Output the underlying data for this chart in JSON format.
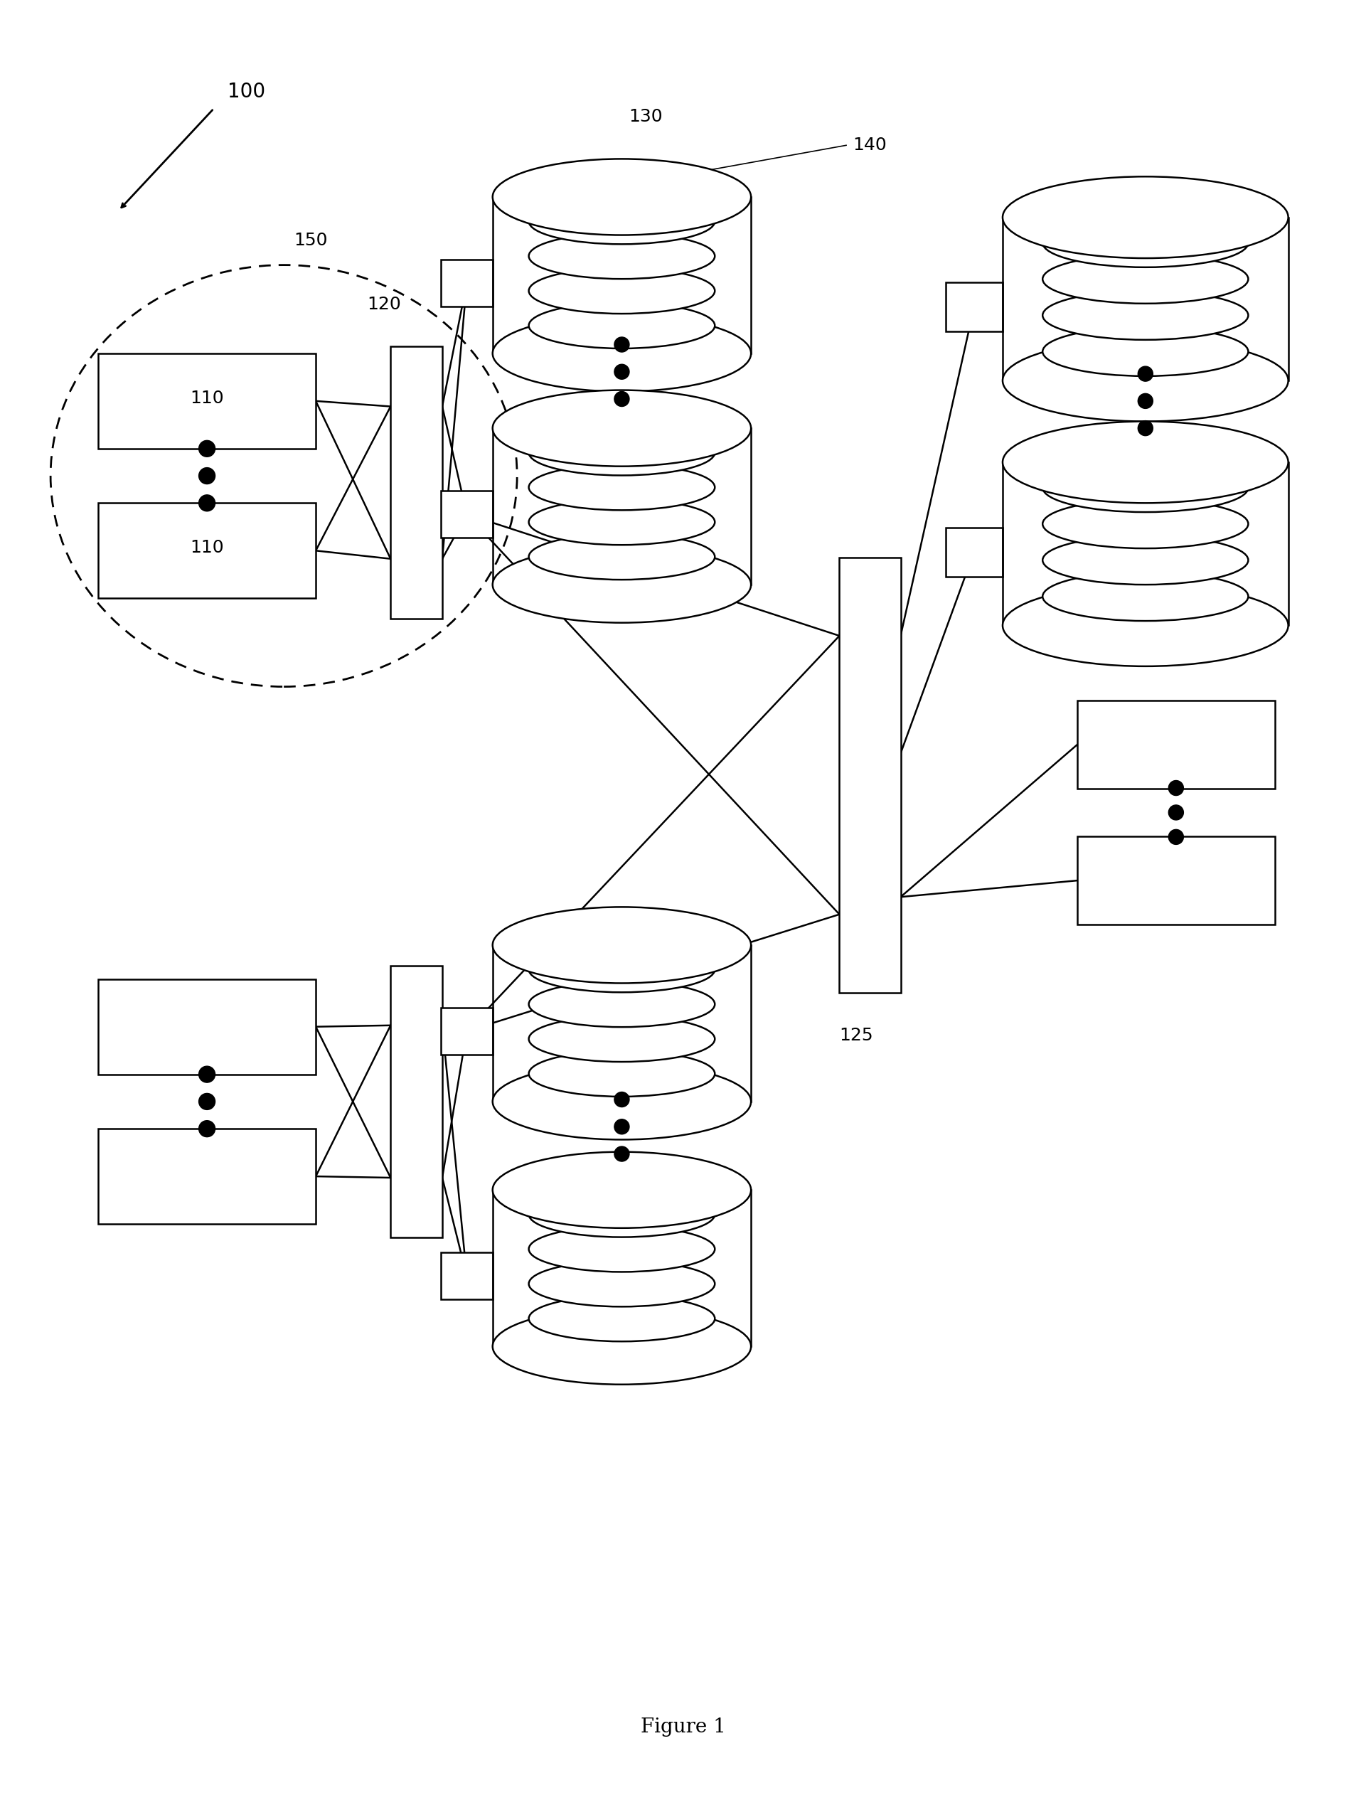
{
  "fig_width": 19.21,
  "fig_height": 25.24,
  "bg_color": "#ffffff",
  "line_color": "#000000",
  "label_100": "100",
  "label_150": "150",
  "label_120": "120",
  "label_130": "130",
  "label_140": "140",
  "label_125": "125",
  "label_110": "110",
  "figure_label": "Figure 1",
  "font_size": 18
}
